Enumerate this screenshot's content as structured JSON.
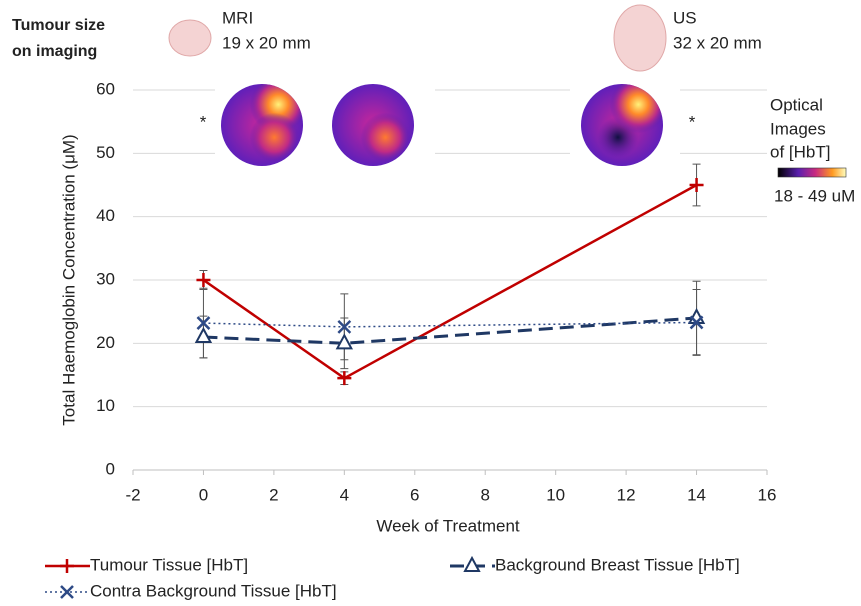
{
  "chart_data": {
    "type": "line",
    "x_label": "Week of Treatment",
    "y_label": "Total Haemoglobin Concentration (μM)",
    "x": [
      0,
      4,
      14
    ],
    "xlim": [
      -2,
      16
    ],
    "xticks": [
      -2,
      0,
      2,
      4,
      6,
      8,
      10,
      12,
      14,
      16
    ],
    "ylim": [
      0,
      60
    ],
    "yticks": [
      0,
      10,
      20,
      30,
      40,
      50,
      60
    ],
    "grid": true,
    "series": [
      {
        "name": "Tumour Tissue [HbT]",
        "color": "#c00000",
        "values": [
          30,
          14.5,
          45
        ],
        "errors": [
          1.5,
          1,
          3.3
        ],
        "dash": "solid",
        "marker": "plus"
      },
      {
        "name": "Background Breast Tissue [HbT]",
        "color": "#1f3864",
        "values": [
          21,
          20,
          24
        ],
        "errors": [
          3.3,
          4,
          5.8
        ],
        "dash": "dashed",
        "marker": "triangle"
      },
      {
        "name": "Contra Background Tissue [HbT]",
        "color": "#2e4a86",
        "values": [
          23.2,
          22.6,
          23.3
        ],
        "errors": [
          5.5,
          5.2,
          5.2
        ],
        "dash": "dotted",
        "marker": "x"
      }
    ],
    "annotations": {
      "imaging_title": [
        "Tumour size",
        "on imaging"
      ],
      "mri": [
        "MRI",
        "19 x 20 mm"
      ],
      "us": [
        "US",
        "32 x 20 mm"
      ],
      "optical": [
        "Optical",
        "Images",
        "of [HbT]"
      ],
      "colorbar_label": "18 - 49 uM",
      "markers": [
        "*",
        "*"
      ]
    }
  }
}
